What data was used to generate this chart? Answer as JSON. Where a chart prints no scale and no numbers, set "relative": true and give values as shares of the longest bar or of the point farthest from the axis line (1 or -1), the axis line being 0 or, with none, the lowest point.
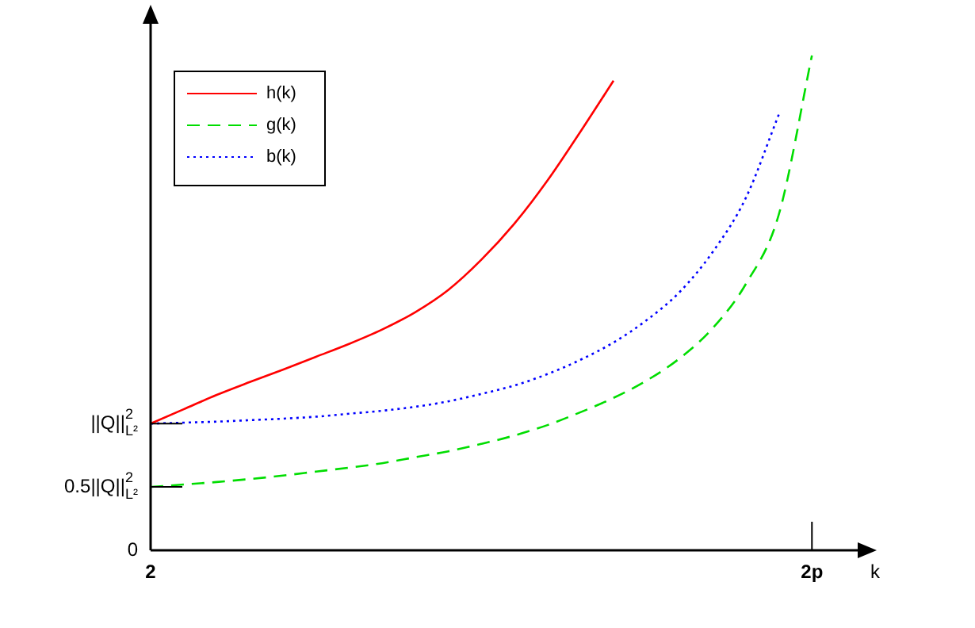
{
  "chart_data": {
    "type": "line",
    "xlabel": "k",
    "relative": true,
    "categories": [
      "2",
      null,
      null,
      null,
      null,
      null,
      null,
      null,
      null,
      null,
      null,
      null,
      null,
      null,
      null,
      null,
      null,
      null,
      null,
      null,
      "2p",
      null
    ],
    "annotations": [
      "0"
    ],
    "ref_lines": [
      {
        "axis": "y",
        "value": 0.128,
        "label": "0.5||Q||$^{2}$$_{L²}$"
      },
      {
        "axis": "y",
        "value": 0.256,
        "label": "||Q||$^{2}$$_{L²}$"
      }
    ],
    "legend": "top left",
    "marker": "none",
    "series": [
      {
        "name": "h(k)",
        "color": "#ff0000",
        "line_style": "solid",
        "values": [
          0.256,
          0.285,
          0.314,
          0.34,
          0.365,
          0.391,
          0.417,
          0.446,
          0.481,
          0.526,
          0.587,
          0.66,
          0.747,
          0.846,
          0.949,
          null,
          null,
          null,
          null,
          null,
          null,
          null
        ]
      },
      {
        "name": "g(k)",
        "color": "#00dd00",
        "line_style": "dashed",
        "values": [
          0.128,
          0.133,
          0.138,
          0.144,
          0.151,
          0.159,
          0.167,
          0.176,
          0.188,
          0.2,
          0.215,
          0.232,
          0.253,
          0.279,
          0.308,
          0.343,
          0.388,
          0.449,
          0.538,
          0.679,
          1.0,
          null
        ]
      },
      {
        "name": "b(k)",
        "color": "#0000ff",
        "line_style": "dotted",
        "values": [
          0.256,
          0.258,
          0.26,
          0.263,
          0.266,
          0.27,
          0.276,
          0.282,
          0.29,
          0.301,
          0.316,
          0.333,
          0.356,
          0.385,
          0.42,
          0.465,
          0.522,
          0.603,
          0.712,
          0.881,
          null,
          null
        ]
      }
    ]
  }
}
